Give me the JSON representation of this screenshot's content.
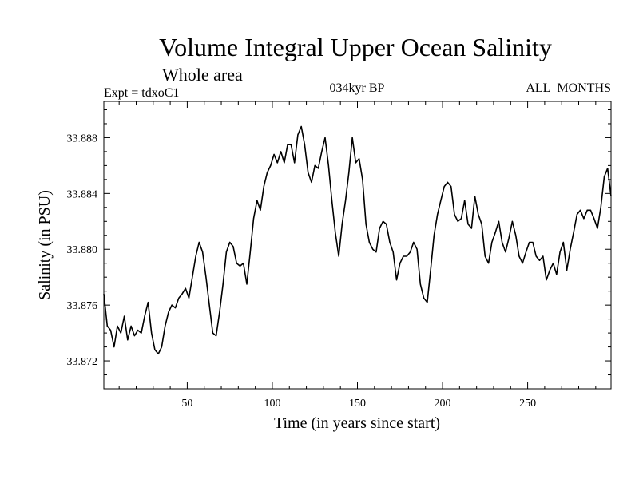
{
  "chart_data": {
    "type": "line",
    "title": "Volume Integral Upper Ocean Salinity",
    "subtitle": "Whole area",
    "expt_label": "Expt = tdxoC1",
    "period_label": "034kyr BP",
    "months_label": "ALL_MONTHS",
    "xlabel": "Time (in years since start)",
    "ylabel": "Salinity (in PSU)",
    "xlim": [
      1,
      299
    ],
    "ylim": [
      33.87,
      33.8906
    ],
    "xticks": [
      50,
      100,
      150,
      200,
      250
    ],
    "xtick_labels": [
      "50",
      "100",
      "150",
      "200",
      "250"
    ],
    "yticks": [
      33.872,
      33.876,
      33.88,
      33.884,
      33.888
    ],
    "ytick_labels": [
      "33.872",
      "33.876",
      "33.880",
      "33.884",
      "33.888"
    ],
    "grid": false,
    "series": [
      {
        "name": "salinity",
        "x": [
          1,
          3,
          5,
          7,
          9,
          11,
          13,
          15,
          17,
          19,
          21,
          23,
          25,
          27,
          29,
          31,
          33,
          35,
          37,
          39,
          41,
          43,
          45,
          47,
          49,
          51,
          53,
          55,
          57,
          59,
          61,
          63,
          65,
          67,
          69,
          71,
          73,
          75,
          77,
          79,
          81,
          83,
          85,
          87,
          89,
          91,
          93,
          95,
          97,
          99,
          101,
          103,
          105,
          107,
          109,
          111,
          113,
          115,
          117,
          119,
          121,
          123,
          125,
          127,
          129,
          131,
          133,
          135,
          137,
          139,
          141,
          143,
          145,
          147,
          149,
          151,
          153,
          155,
          157,
          159,
          161,
          163,
          165,
          167,
          169,
          171,
          173,
          175,
          177,
          179,
          181,
          183,
          185,
          187,
          189,
          191,
          193,
          195,
          197,
          199,
          201,
          203,
          205,
          207,
          209,
          211,
          213,
          215,
          217,
          219,
          221,
          223,
          225,
          227,
          229,
          231,
          233,
          235,
          237,
          239,
          241,
          243,
          245,
          247,
          249,
          251,
          253,
          255,
          257,
          259,
          261,
          263,
          265,
          267,
          269,
          271,
          273,
          275,
          277,
          279,
          281,
          283,
          285,
          287,
          289,
          291,
          293,
          295,
          297,
          299
        ],
        "values": [
          33.8768,
          33.8745,
          33.8742,
          33.873,
          33.8745,
          33.874,
          33.8752,
          33.8735,
          33.8745,
          33.8738,
          33.8742,
          33.874,
          33.8752,
          33.8762,
          33.874,
          33.8728,
          33.8725,
          33.873,
          33.8745,
          33.8755,
          33.876,
          33.8758,
          33.8765,
          33.8768,
          33.8772,
          33.8765,
          33.878,
          33.8795,
          33.8805,
          33.8798,
          33.878,
          33.876,
          33.874,
          33.8738,
          33.8755,
          33.8775,
          33.8798,
          33.8805,
          33.8802,
          33.879,
          33.8788,
          33.879,
          33.8775,
          33.8798,
          33.8822,
          33.8835,
          33.8828,
          33.8845,
          33.8855,
          33.886,
          33.8868,
          33.8862,
          33.887,
          33.8862,
          33.8875,
          33.8875,
          33.8862,
          33.8882,
          33.8888,
          33.8875,
          33.8855,
          33.8848,
          33.886,
          33.8858,
          33.887,
          33.888,
          33.886,
          33.8835,
          33.8812,
          33.8795,
          33.8818,
          33.8835,
          33.8855,
          33.888,
          33.8862,
          33.8865,
          33.885,
          33.8818,
          33.8805,
          33.88,
          33.8798,
          33.8815,
          33.882,
          33.8818,
          33.8805,
          33.8798,
          33.8778,
          33.879,
          33.8795,
          33.8795,
          33.8798,
          33.8805,
          33.88,
          33.8775,
          33.8765,
          33.8762,
          33.8785,
          33.881,
          33.8825,
          33.8835,
          33.8845,
          33.8848,
          33.8845,
          33.8825,
          33.882,
          33.8822,
          33.8835,
          33.8818,
          33.8815,
          33.8838,
          33.8825,
          33.8818,
          33.8795,
          33.879,
          33.8805,
          33.8812,
          33.882,
          33.8805,
          33.8798,
          33.8808,
          33.882,
          33.881,
          33.8795,
          33.879,
          33.8798,
          33.8805,
          33.8805,
          33.8795,
          33.8792,
          33.8795,
          33.8778,
          33.8785,
          33.879,
          33.8782,
          33.8798,
          33.8805,
          33.8785,
          33.88,
          33.8812,
          33.8825,
          33.8828,
          33.8822,
          33.8828,
          33.8828,
          33.8822,
          33.8815,
          33.883,
          33.8852,
          33.8858,
          33.8838
        ]
      }
    ]
  }
}
